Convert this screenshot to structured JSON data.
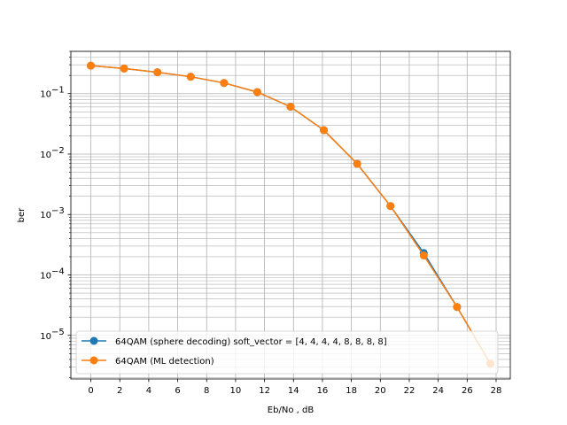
{
  "chart_data": {
    "type": "line",
    "xlabel": "Eb/No , dB",
    "ylabel": "ber",
    "xlim": [
      -1.38,
      28.98
    ],
    "ylim": [
      1.9e-06,
      0.5
    ],
    "y_scale": "log",
    "grid": "major and minor",
    "legend_position": "lower-left",
    "x": [
      0,
      2.3,
      4.6,
      6.9,
      9.2,
      11.5,
      13.8,
      16.1,
      18.4,
      20.7,
      23.0,
      25.3,
      27.6
    ],
    "x_ticks": [
      "0",
      "2",
      "4",
      "6",
      "8",
      "10",
      "12",
      "14",
      "16",
      "18",
      "20",
      "22",
      "24",
      "26",
      "28"
    ],
    "y_ticks": [
      {
        "mantissa": "10",
        "exp": "−5"
      },
      {
        "mantissa": "10",
        "exp": "−4"
      },
      {
        "mantissa": "10",
        "exp": "−3"
      },
      {
        "mantissa": "10",
        "exp": "−2"
      },
      {
        "mantissa": "10",
        "exp": "−1"
      }
    ],
    "series": [
      {
        "name": "64QAM (sphere decoding) soft_vector = [4, 4, 4, 4, 8, 8, 8, 8]",
        "color": "#1f77b4",
        "values": [
          0.29,
          0.26,
          0.225,
          0.19,
          0.15,
          0.106,
          0.0605,
          0.0248,
          0.0069,
          0.00138,
          0.00023,
          2.95e-05,
          3.4e-06
        ]
      },
      {
        "name": "64QAM (ML detection)",
        "color": "#ff7f0e",
        "values": [
          0.29,
          0.26,
          0.225,
          0.19,
          0.15,
          0.106,
          0.0605,
          0.0248,
          0.0069,
          0.00138,
          0.00021,
          2.95e-05,
          3.4e-06
        ]
      }
    ]
  }
}
